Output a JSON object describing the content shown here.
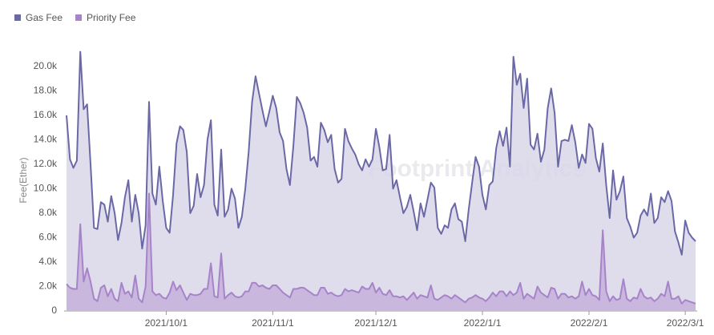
{
  "chart_data": {
    "type": "area",
    "y_label": "Fee(Ether)",
    "watermark": "Footprint Analytics",
    "x": [
      "2021/9/2",
      "2021/9/3",
      "2021/9/4",
      "2021/9/5",
      "2021/9/6",
      "2021/9/7",
      "2021/9/8",
      "2021/9/9",
      "2021/9/10",
      "2021/9/11",
      "2021/9/12",
      "2021/9/13",
      "2021/9/14",
      "2021/9/15",
      "2021/9/16",
      "2021/9/17",
      "2021/9/18",
      "2021/9/19",
      "2021/9/20",
      "2021/9/21",
      "2021/9/22",
      "2021/9/23",
      "2021/9/24",
      "2021/9/25",
      "2021/9/26",
      "2021/9/27",
      "2021/9/28",
      "2021/9/29",
      "2021/9/30",
      "2021/10/1",
      "2021/10/2",
      "2021/10/3",
      "2021/10/4",
      "2021/10/5",
      "2021/10/6",
      "2021/10/7",
      "2021/10/8",
      "2021/10/9",
      "2021/10/10",
      "2021/10/11",
      "2021/10/12",
      "2021/10/13",
      "2021/10/14",
      "2021/10/15",
      "2021/10/16",
      "2021/10/17",
      "2021/10/18",
      "2021/10/19",
      "2021/10/20",
      "2021/10/21",
      "2021/10/22",
      "2021/10/23",
      "2021/10/24",
      "2021/10/25",
      "2021/10/26",
      "2021/10/27",
      "2021/10/28",
      "2021/10/29",
      "2021/10/30",
      "2021/10/31",
      "2021/11/1",
      "2021/11/2",
      "2021/11/3",
      "2021/11/4",
      "2021/11/5",
      "2021/11/6",
      "2021/11/7",
      "2021/11/8",
      "2021/11/9",
      "2021/11/10",
      "2021/11/11",
      "2021/11/12",
      "2021/11/13",
      "2021/11/14",
      "2021/11/15",
      "2021/11/16",
      "2021/11/17",
      "2021/11/18",
      "2021/11/19",
      "2021/11/20",
      "2021/11/21",
      "2021/11/22",
      "2021/11/23",
      "2021/11/24",
      "2021/11/25",
      "2021/11/26",
      "2021/11/27",
      "2021/11/28",
      "2021/11/29",
      "2021/11/30",
      "2021/12/1",
      "2021/12/2",
      "2021/12/3",
      "2021/12/4",
      "2021/12/5",
      "2021/12/6",
      "2021/12/7",
      "2021/12/8",
      "2021/12/9",
      "2021/12/10",
      "2021/12/11",
      "2021/12/12",
      "2021/12/13",
      "2021/12/14",
      "2021/12/15",
      "2021/12/16",
      "2021/12/17",
      "2021/12/18",
      "2021/12/19",
      "2021/12/20",
      "2021/12/21",
      "2021/12/22",
      "2021/12/23",
      "2021/12/24",
      "2021/12/25",
      "2021/12/26",
      "2021/12/27",
      "2021/12/28",
      "2021/12/29",
      "2021/12/30",
      "2021/12/31",
      "2022/1/1",
      "2022/1/2",
      "2022/1/3",
      "2022/1/4",
      "2022/1/5",
      "2022/1/6",
      "2022/1/7",
      "2022/1/8",
      "2022/1/9",
      "2022/1/10",
      "2022/1/11",
      "2022/1/12",
      "2022/1/13",
      "2022/1/14",
      "2022/1/15",
      "2022/1/16",
      "2022/1/17",
      "2022/1/18",
      "2022/1/19",
      "2022/1/20",
      "2022/1/21",
      "2022/1/22",
      "2022/1/23",
      "2022/1/24",
      "2022/1/25",
      "2022/1/26",
      "2022/1/27",
      "2022/1/28",
      "2022/1/29",
      "2022/1/30",
      "2022/1/31",
      "2022/2/1",
      "2022/2/2",
      "2022/2/3",
      "2022/2/4",
      "2022/2/5",
      "2022/2/6",
      "2022/2/7",
      "2022/2/8",
      "2022/2/9",
      "2022/2/10",
      "2022/2/11",
      "2022/2/12",
      "2022/2/13",
      "2022/2/14",
      "2022/2/15",
      "2022/2/16",
      "2022/2/17",
      "2022/2/18",
      "2022/2/19",
      "2022/2/20",
      "2022/2/21",
      "2022/2/22",
      "2022/2/23",
      "2022/2/24",
      "2022/2/25",
      "2022/2/26",
      "2022/2/27",
      "2022/2/28",
      "2022/3/1",
      "2022/3/2",
      "2022/3/3",
      "2022/3/4"
    ],
    "xlim": [
      "2021/9/2",
      "2022/3/4"
    ],
    "xticks": [
      "2021/10/1",
      "2021/11/1",
      "2021/12/1",
      "2022/1/1",
      "2022/2/1",
      "2022/3/1"
    ],
    "ylim": [
      0,
      21500
    ],
    "yticks": [
      0,
      {
        "value": 2000,
        "label": "2.0k"
      },
      {
        "value": 4000,
        "label": "4.0k"
      },
      {
        "value": 6000,
        "label": "6.0k"
      },
      {
        "value": 8000,
        "label": "8.0k"
      },
      {
        "value": 10000,
        "label": "10.0k"
      },
      {
        "value": 12000,
        "label": "12.0k"
      },
      {
        "value": 14000,
        "label": "14.0k"
      },
      {
        "value": 16000,
        "label": "16.0k"
      },
      {
        "value": 18000,
        "label": "18.0k"
      },
      {
        "value": 20000,
        "label": "20.0k"
      }
    ],
    "grid": false,
    "legend": "top-left",
    "series": [
      {
        "name": "Gas Fee",
        "color": "#6b68a6",
        "fill": "#d9d7e9",
        "values": [
          16000,
          12400,
          11700,
          12300,
          21200,
          16500,
          16900,
          12000,
          6800,
          6700,
          8900,
          8700,
          7300,
          9400,
          8000,
          5800,
          7200,
          9300,
          10700,
          7300,
          9500,
          8000,
          5100,
          7000,
          17100,
          9600,
          8700,
          11800,
          9000,
          6800,
          6400,
          9500,
          13700,
          15100,
          14800,
          13000,
          8000,
          8600,
          11200,
          9300,
          10300,
          14000,
          15600,
          8700,
          7800,
          13200,
          7700,
          8300,
          10000,
          9200,
          6800,
          7700,
          10000,
          13000,
          17100,
          19200,
          17800,
          16400,
          15100,
          16300,
          17600,
          16600,
          14600,
          13900,
          11600,
          10300,
          13500,
          17500,
          17000,
          16200,
          15000,
          12300,
          12600,
          11800,
          15400,
          14800,
          13800,
          14400,
          11600,
          10500,
          10800,
          14900,
          13900,
          13300,
          12800,
          12000,
          11500,
          12400,
          11800,
          12400,
          14900,
          13400,
          11500,
          11600,
          14400,
          10000,
          10700,
          9300,
          8000,
          8500,
          9500,
          8100,
          6600,
          8800,
          7700,
          9100,
          10500,
          10100,
          6800,
          6300,
          7000,
          6800,
          8300,
          8800,
          7500,
          7300,
          5700,
          8300,
          10500,
          12600,
          11800,
          9500,
          8300,
          10300,
          10600,
          13300,
          14700,
          13500,
          15000,
          11800,
          20800,
          18500,
          19400,
          16600,
          19000,
          13600,
          13200,
          14500,
          12200,
          13200,
          16600,
          18200,
          16200,
          11800,
          13900,
          14000,
          13900,
          15200,
          13800,
          11700,
          12800,
          12100,
          15300,
          14900,
          12500,
          11400,
          13700,
          10300,
          7600,
          11500,
          9100,
          9800,
          11000,
          7600,
          6900,
          6000,
          6400,
          7800,
          8300,
          7800,
          9600,
          7200,
          7600,
          9300,
          8900,
          9800,
          9000,
          6500,
          5600,
          4600,
          7400,
          6400,
          6000,
          5700
        ]
      },
      {
        "name": "Priority Fee",
        "color": "#a783c9",
        "fill": "#c6b0dc",
        "values": [
          2200,
          1900,
          1800,
          1800,
          7100,
          2400,
          3500,
          2400,
          1000,
          800,
          1900,
          2100,
          1200,
          1800,
          1000,
          800,
          2300,
          1400,
          1600,
          1100,
          2900,
          1000,
          700,
          2000,
          9600,
          1600,
          1300,
          1400,
          1100,
          1000,
          1500,
          2400,
          1700,
          2100,
          1500,
          900,
          1400,
          1300,
          1300,
          1400,
          1800,
          1800,
          3900,
          1200,
          1100,
          4700,
          1000,
          1300,
          1500,
          1200,
          1100,
          1200,
          1600,
          1600,
          2300,
          2300,
          2000,
          2100,
          1900,
          1800,
          2100,
          2100,
          1800,
          1500,
          1300,
          1100,
          1800,
          1800,
          1900,
          1900,
          1700,
          1500,
          1300,
          1300,
          1900,
          1900,
          1400,
          1500,
          1300,
          1200,
          1300,
          1800,
          1600,
          1700,
          1600,
          1500,
          2000,
          1800,
          1800,
          2300,
          1500,
          1900,
          1400,
          1300,
          1700,
          1200,
          1200,
          1100,
          1200,
          900,
          1200,
          1500,
          1000,
          1300,
          1200,
          1100,
          2100,
          1000,
          900,
          1100,
          1300,
          1200,
          1000,
          1300,
          1100,
          900,
          700,
          1000,
          1100,
          1300,
          1100,
          1000,
          800,
          1100,
          1500,
          1200,
          1600,
          1600,
          1200,
          1600,
          1300,
          1500,
          2300,
          1000,
          1400,
          1200,
          1000,
          2000,
          1500,
          1300,
          1100,
          1900,
          1800,
          1000,
          1400,
          1400,
          1100,
          1200,
          1000,
          1200,
          2400,
          1300,
          1800,
          1300,
          1200,
          900,
          6600,
          1600,
          800,
          1200,
          900,
          1000,
          2600,
          1000,
          800,
          1100,
          1000,
          1800,
          1200,
          1000,
          1100,
          800,
          1000,
          1400,
          1200,
          2400,
          1000,
          1000,
          1200,
          600,
          900,
          800,
          700,
          600
        ]
      }
    ]
  }
}
